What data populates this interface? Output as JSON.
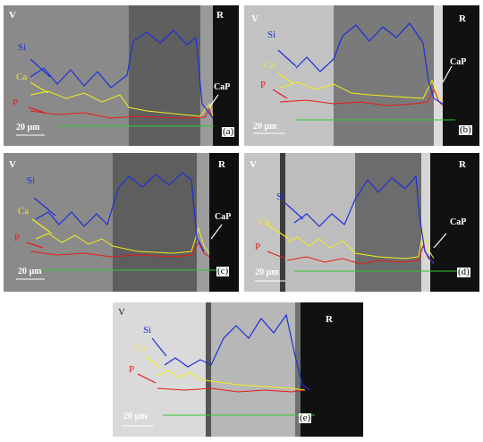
{
  "panels": [
    {
      "id": "a",
      "corner_left": "V",
      "corner_right": "R",
      "si": "Si",
      "ca": "Ca",
      "p": "P",
      "cap": "CaP",
      "scale": "20 µm",
      "letter": "(a)"
    },
    {
      "id": "b",
      "corner_left": "V",
      "corner_right": "R",
      "si": "Si",
      "ca": "Ca",
      "p": "P",
      "cap": "CaP",
      "scale": "20 µm",
      "letter": "(b)"
    },
    {
      "id": "c",
      "corner_left": "V",
      "corner_right": "R",
      "si": "Si",
      "ca": "Ca",
      "p": "P",
      "cap": "CaP",
      "scale": "20 µm",
      "letter": "(c)"
    },
    {
      "id": "d",
      "corner_left": "V",
      "corner_right": "R",
      "si": "Si",
      "ca": "Ca",
      "p": "P",
      "cap": "CaP",
      "scale": "20 µm",
      "letter": "(d)"
    },
    {
      "id": "e",
      "corner_left": "V",
      "corner_right": "R",
      "si": "Si",
      "ca": "Ca",
      "p": "P",
      "cap": "",
      "scale": "20 µm",
      "letter": "(e)"
    }
  ],
  "colors": {
    "si": "#1f2fd8",
    "ca": "#f2ee1a",
    "p": "#e41b1b",
    "baseline": "#35c435",
    "cap_label": "#ffffff",
    "frame": "#333333"
  }
}
